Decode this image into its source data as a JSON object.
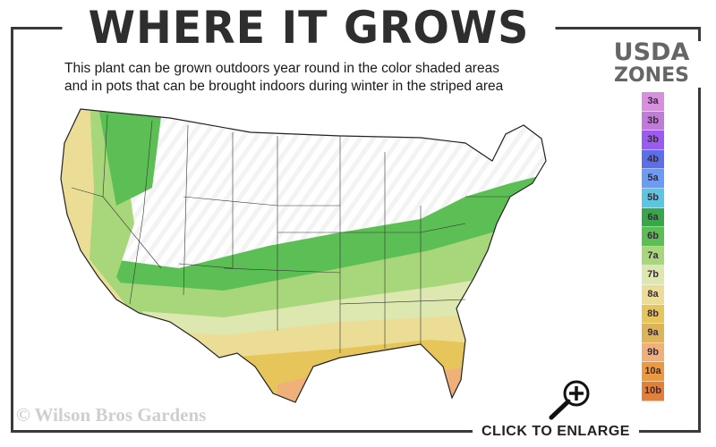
{
  "header": {
    "title": "WHERE IT GROWS",
    "subtitle_line1": "This plant can be grown outdoors year round in the color shaded areas",
    "subtitle_line2": "and in pots that can be brought indoors during winter in the striped area"
  },
  "legend": {
    "title_line1": "USDA",
    "title_line2": "ZONES",
    "zones": [
      {
        "label": "3a",
        "color": "#d98fe0"
      },
      {
        "label": "3b",
        "color": "#c07ad8"
      },
      {
        "label": "3b",
        "color": "#9a5cf0"
      },
      {
        "label": "4b",
        "color": "#5a6fe8"
      },
      {
        "label": "5a",
        "color": "#6a9cf5"
      },
      {
        "label": "5b",
        "color": "#5cc5e0"
      },
      {
        "label": "6a",
        "color": "#3aa64a"
      },
      {
        "label": "6b",
        "color": "#5cbf55"
      },
      {
        "label": "7a",
        "color": "#a8d67a"
      },
      {
        "label": "7b",
        "color": "#dde8b0"
      },
      {
        "label": "8a",
        "color": "#ecdd96"
      },
      {
        "label": "8b",
        "color": "#e6c55a"
      },
      {
        "label": "9a",
        "color": "#dcb55a"
      },
      {
        "label": "9b",
        "color": "#f0b07a"
      },
      {
        "label": "10a",
        "color": "#eb9a40"
      },
      {
        "label": "10b",
        "color": "#e0803a"
      }
    ]
  },
  "footer": {
    "watermark": "© Wilson Bros Gardens",
    "enlarge_label": "CLICK TO ENLARGE",
    "enlarge_icon": "zoom-in-icon"
  }
}
